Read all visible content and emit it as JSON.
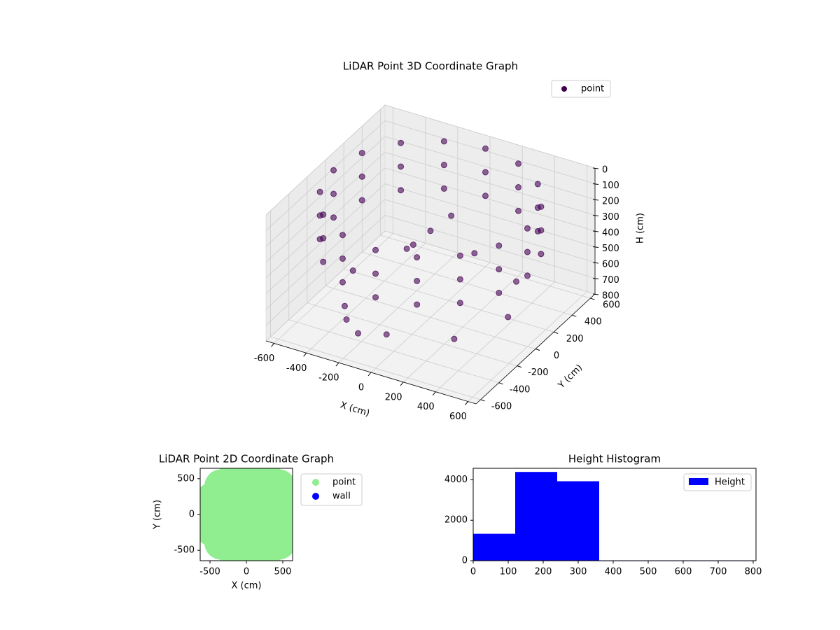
{
  "chart_data": [
    {
      "type": "scatter3d",
      "title": "LiDAR Point 3D Coordinate Graph",
      "xlabel": "X (cm)",
      "ylabel": "Y (cm)",
      "zlabel": "H (cm)",
      "xlim": [
        -650,
        650
      ],
      "ylim": [
        -650,
        650
      ],
      "zlim": [
        800,
        0
      ],
      "xticks": [
        -600,
        -400,
        -200,
        0,
        200,
        400,
        600
      ],
      "yticks": [
        -600,
        -400,
        -200,
        0,
        200,
        400,
        600
      ],
      "zticks": [
        0,
        100,
        200,
        300,
        400,
        500,
        600,
        700,
        800
      ],
      "legend": "upper right",
      "grid": true,
      "series": [
        {
          "name": "point",
          "color": "#440154",
          "x": [
            600,
            554,
            424,
            230,
            0,
            -230,
            -424,
            -554,
            -600,
            -554,
            -424,
            -230,
            0,
            230,
            424,
            554,
            600,
            554,
            424,
            230,
            0,
            -230,
            -424,
            -554,
            -600,
            -554,
            -424,
            -230,
            0,
            230,
            424,
            554,
            600,
            554,
            424,
            230,
            0,
            -230,
            -424,
            -554,
            -600,
            -554,
            -424,
            -230,
            0,
            230,
            424,
            554,
            480,
            339,
            0,
            -339,
            -480,
            -339,
            0,
            339,
            0,
            100,
            -50,
            -350,
            -250
          ],
          "y": [
            0,
            230,
            424,
            554,
            600,
            554,
            424,
            230,
            0,
            -230,
            -424,
            -554,
            -600,
            -554,
            -424,
            -230,
            0,
            230,
            424,
            554,
            600,
            554,
            424,
            230,
            0,
            -230,
            -424,
            -554,
            -600,
            -554,
            -424,
            -230,
            0,
            230,
            424,
            554,
            600,
            554,
            424,
            230,
            0,
            -230,
            -424,
            -554,
            -600,
            -554,
            -424,
            -230,
            0,
            339,
            480,
            339,
            0,
            -339,
            -480,
            -339,
            0,
            50,
            -100,
            -300,
            -350
          ],
          "z": [
            50,
            50,
            50,
            50,
            50,
            50,
            50,
            50,
            50,
            50,
            50,
            50,
            50,
            50,
            50,
            50,
            200,
            200,
            200,
            200,
            200,
            200,
            200,
            200,
            200,
            200,
            200,
            200,
            200,
            200,
            200,
            200,
            350,
            350,
            350,
            350,
            350,
            350,
            350,
            350,
            350,
            350,
            350,
            350,
            350,
            350,
            350,
            350,
            650,
            650,
            650,
            650,
            650,
            650,
            650,
            650,
            250,
            150,
            300,
            760,
            790
          ]
        }
      ]
    },
    {
      "type": "scatter",
      "title": "LiDAR Point 2D Coordinate Graph",
      "xlabel": "X (cm)",
      "ylabel": "Y (cm)",
      "xlim": [
        -635,
        635
      ],
      "ylim": [
        -645,
        645
      ],
      "xticks": [
        -500,
        0,
        500
      ],
      "yticks": [
        -500,
        0,
        500
      ],
      "legend": "outside right",
      "series": [
        {
          "name": "point",
          "color": "#90ee90",
          "x": [
            50,
            250,
            191,
            50,
            -91,
            -150,
            -91,
            50,
            191,
            396,
            250,
            50,
            -150,
            -296,
            -350,
            -296,
            -150,
            50,
            250,
            396,
            567,
            446,
            264,
            50,
            -164,
            -346,
            -467,
            -510,
            -467,
            -346,
            -164,
            50,
            264,
            446,
            567
          ],
          "y": [
            0,
            0,
            141,
            200,
            141,
            0,
            -141,
            -200,
            -141,
            200,
            346,
            400,
            346,
            200,
            0,
            -200,
            -346,
            -400,
            -346,
            -200,
            214,
            396,
            517,
            560,
            517,
            396,
            214,
            0,
            -214,
            -396,
            -517,
            -560,
            -517,
            -396,
            -214
          ]
        },
        {
          "name": "wall",
          "color": "#0000ff",
          "x": [],
          "y": []
        }
      ]
    },
    {
      "type": "histogram",
      "title": "Height Histogram",
      "xlim": [
        0,
        808
      ],
      "ylim": [
        0,
        4570
      ],
      "xticks": [
        0,
        100,
        200,
        300,
        400,
        500,
        600,
        700,
        800
      ],
      "yticks": [
        0,
        2000,
        4000
      ],
      "bins": [
        0,
        120,
        240,
        360,
        480,
        600,
        720,
        800
      ],
      "legend": "upper right",
      "series": [
        {
          "name": "Height",
          "color": "#0000ff",
          "values": [
            1330,
            4390,
            3930,
            0,
            0,
            0,
            0
          ]
        }
      ]
    }
  ]
}
